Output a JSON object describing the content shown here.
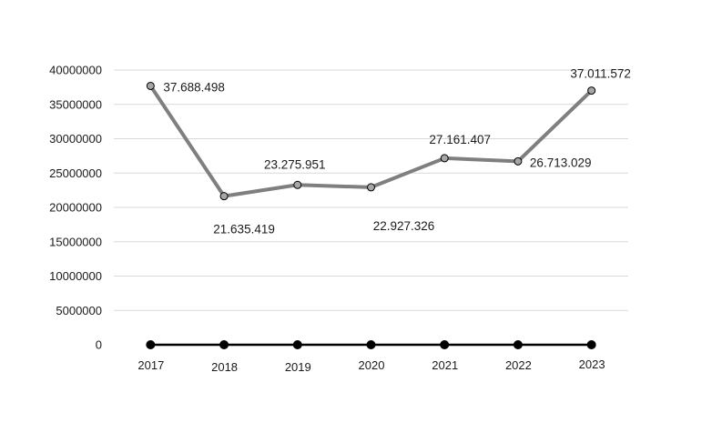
{
  "chart_data": {
    "type": "line",
    "categories": [
      "2017",
      "2018",
      "2019",
      "2020",
      "2021",
      "2022",
      "2023"
    ],
    "series": [
      {
        "values": [
          37688498,
          21635419,
          23275951,
          22927326,
          27161407,
          26713029,
          37011572
        ],
        "data_labels": [
          "37.688.498",
          "21.635.419",
          "23.275.951",
          "22.927.326",
          "27.161.407",
          "26.713.029",
          "37.011.572"
        ],
        "color": "#7f7f7f",
        "marker_fill": "#a6a6a6"
      },
      {
        "values": [
          0,
          0,
          0,
          0,
          0,
          0,
          0
        ],
        "color": "#000000",
        "marker_fill": "#000000"
      }
    ],
    "y_ticks": [
      "0",
      "5000000",
      "10000000",
      "15000000",
      "20000000",
      "25000000",
      "30000000",
      "35000000",
      "40000000"
    ],
    "ylim": [
      0,
      40000000
    ],
    "grid": true,
    "legend": "none",
    "title": "",
    "xlabel": "",
    "ylabel": "",
    "gridline_color": "#d9d9d9"
  }
}
